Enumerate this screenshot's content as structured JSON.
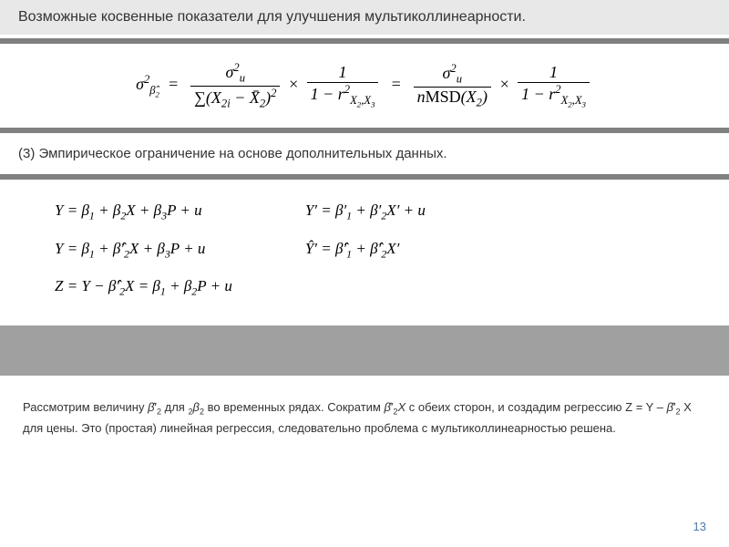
{
  "title": "Возможные косвенные показатели для улучшения мультиколлинеарности.",
  "subheading": "(3)   Эмпирическое ограничение на основе дополнительных данных.",
  "main_formula": {
    "lhs": "σ²_β̂₂",
    "rhs1_num": "σ²_u",
    "rhs1_den": "Σ(X₂ᵢ − X̄₂)²",
    "factor1_num": "1",
    "factor1_den": "1 − r²_X₂,X₃",
    "rhs2_num": "σ²_u",
    "rhs2_den": "nMSD(X₂)",
    "factor2_num": "1",
    "factor2_den": "1 − r²_X₂,X₃"
  },
  "equations_left": [
    "Y = β₁ + β₂X + β₃P + u",
    "Y = β₁ + β̂′₂X + β₃P + u",
    "Z = Y − β̂′₂X = β₁ + β₂P + u"
  ],
  "equations_right": [
    "Y′ = β′₁ + β′₂X′ + u",
    "Ŷ′ = β̂′₁ + β̂′₂X′"
  ],
  "bottom_paragraph_parts": {
    "p1": "Рассмотрим величину ",
    "p2": " для ",
    "p3": "β₂",
    "p4": " во временных рядах. Сократим ",
    "p5": "X",
    "p6": " с обеих сторон, и создадим регрессию Z = Y – ",
    "p7": " X для цены. Это (простая) линейная регрессия, следовательно проблема с мультиколлинеарностью решена."
  },
  "page_number": "13",
  "colors": {
    "title_bg": "#e8e8e8",
    "line": "#808080",
    "band": "#a0a0a0",
    "pagenum": "#4a7ba6"
  }
}
